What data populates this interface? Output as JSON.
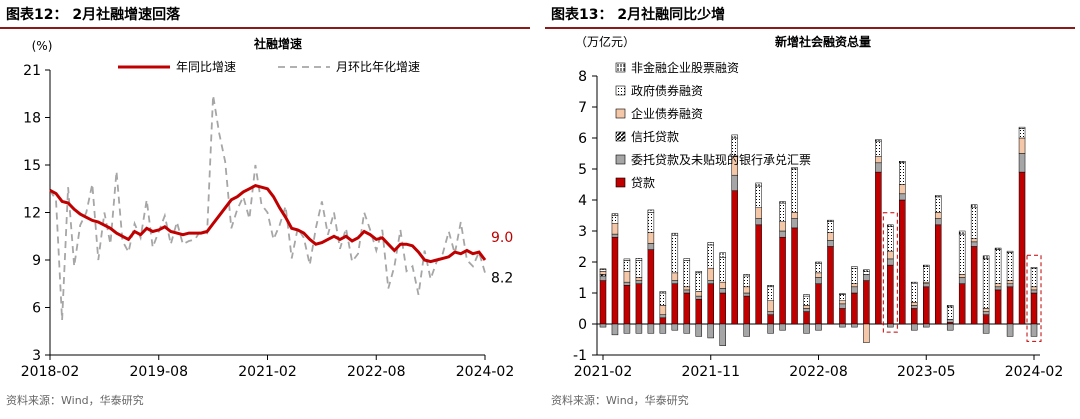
{
  "left": {
    "figure_title": "图表12： 2月社融增速回落",
    "source": "资料来源：Wind，华泰研究",
    "chart_data": {
      "type": "line",
      "title": "社融增速",
      "ylabel": "(%)",
      "ylim": [
        3,
        21
      ],
      "yticks": [
        3,
        6,
        9,
        12,
        15,
        18,
        21
      ],
      "xticks": [
        "2018-02",
        "2019-08",
        "2021-02",
        "2022-08",
        "2024-02"
      ],
      "n_points": 73,
      "series": [
        {
          "name": "年同比增速",
          "color": "#c00000",
          "values": [
            13.4,
            13.2,
            12.7,
            12.6,
            12.2,
            11.9,
            11.7,
            11.5,
            11.4,
            11.2,
            11.0,
            10.7,
            10.5,
            10.3,
            10.8,
            10.6,
            11.0,
            10.8,
            10.9,
            11.1,
            10.8,
            10.7,
            10.6,
            10.7,
            10.7,
            10.7,
            10.8,
            11.3,
            11.8,
            12.3,
            12.8,
            13.0,
            13.3,
            13.5,
            13.7,
            13.6,
            13.5,
            13.0,
            12.3,
            11.7,
            11.0,
            10.9,
            10.7,
            10.3,
            10.0,
            10.1,
            10.3,
            10.5,
            10.3,
            10.5,
            10.2,
            10.4,
            10.8,
            10.6,
            10.3,
            10.4,
            10.0,
            9.6,
            10.0,
            10.0,
            9.9,
            9.5,
            9.0,
            8.9,
            9.0,
            9.1,
            9.2,
            9.5,
            9.4,
            9.6,
            9.4,
            9.5,
            9.0
          ],
          "end_label": "9.0"
        },
        {
          "name": "月环比年化增速",
          "color": "#a6a6a6",
          "values": [
            13.4,
            12.8,
            5.2,
            13.6,
            8.6,
            11.2,
            12.0,
            13.8,
            9.0,
            12.0,
            10.0,
            14.6,
            10.2,
            9.5,
            11.3,
            10.4,
            12.8,
            9.8,
            10.8,
            11.8,
            10.0,
            11.4,
            10.0,
            10.2,
            10.3,
            10.9,
            10.7,
            19.4,
            17.0,
            15.2,
            11.0,
            12.2,
            13.0,
            11.6,
            15.0,
            12.5,
            12.0,
            10.3,
            11.2,
            12.4,
            9.1,
            11.0,
            10.4,
            8.7,
            11.0,
            12.7,
            10.6,
            12.0,
            9.7,
            11.0,
            8.9,
            9.4,
            12.0,
            10.9,
            9.6,
            10.9,
            7.2,
            8.6,
            10.9,
            8.3,
            8.6,
            6.8,
            9.6,
            7.8,
            8.9,
            9.4,
            10.8,
            9.4,
            11.4,
            9.0,
            8.6,
            9.5,
            8.2
          ],
          "end_label": "8.2"
        }
      ]
    }
  },
  "right": {
    "figure_title": "图表13： 2月社融同比少增",
    "source": "资料来源：Wind，华泰研究",
    "chart_data": {
      "type": "bar",
      "title": "新增社会融资总量",
      "ylabel": "（万亿元）",
      "ylim": [
        -1,
        8
      ],
      "yticks": [
        -1,
        0,
        1,
        2,
        3,
        4,
        5,
        6,
        7,
        8
      ],
      "xticks": [
        "2021-02",
        "2021-11",
        "2022-08",
        "2023-05",
        "2024-02"
      ],
      "stacked": true,
      "highlighted_periods": [
        "2023-02",
        "2024-02"
      ],
      "series": [
        {
          "name": "非金融企业股票融资",
          "color": "#ffffff",
          "pattern": "vertical-dash"
        },
        {
          "name": "政府债券融资",
          "color": "#ffffff",
          "pattern": "dots"
        },
        {
          "name": "企业债券融资",
          "color": "#f4c7a8"
        },
        {
          "name": "信托贷款",
          "color": "#000000",
          "pattern": "diagonal"
        },
        {
          "name": "委托贷款及未贴现的银行承兑汇票",
          "color": "#a6a6a6"
        },
        {
          "name": "贷款",
          "color": "#c00000"
        }
      ],
      "periods": [
        {
          "label": "2021-02",
          "loans": 1.4,
          "entrusted": 0.15,
          "trust": 0.05,
          "corp_bonds": 0.1,
          "gov_bonds": 0.05,
          "equity": 0.03,
          "neg": -0.1
        },
        {
          "label": "2021-03",
          "loans": 2.8,
          "entrusted": 0.1,
          "trust": 0.0,
          "corp_bonds": 0.35,
          "gov_bonds": 0.25,
          "equity": 0.06,
          "neg": -0.35
        },
        {
          "label": "2021-04",
          "loans": 1.25,
          "entrusted": 0.1,
          "trust": 0.0,
          "corp_bonds": 0.35,
          "gov_bonds": 0.35,
          "equity": 0.05,
          "neg": -0.3
        },
        {
          "label": "2021-05",
          "loans": 1.3,
          "entrusted": 0.1,
          "trust": 0.0,
          "corp_bonds": 0.1,
          "gov_bonds": 0.55,
          "equity": 0.07,
          "neg": -0.3
        },
        {
          "label": "2021-06",
          "loans": 2.4,
          "entrusted": 0.2,
          "trust": 0.0,
          "corp_bonds": 0.35,
          "gov_bonds": 0.65,
          "equity": 0.08,
          "neg": -0.3
        },
        {
          "label": "2021-07",
          "loans": 0.2,
          "entrusted": 0.1,
          "trust": 0.0,
          "corp_bonds": 0.3,
          "gov_bonds": 0.4,
          "equity": 0.05,
          "neg": -0.3
        },
        {
          "label": "2021-08",
          "loans": 1.3,
          "entrusted": 0.1,
          "trust": 0.0,
          "corp_bonds": 0.25,
          "gov_bonds": 1.2,
          "equity": 0.08,
          "neg": -0.2
        },
        {
          "label": "2021-09",
          "loans": 1.0,
          "entrusted": 0.1,
          "trust": 0.0,
          "corp_bonds": 0.1,
          "gov_bonds": 0.85,
          "equity": 0.06,
          "neg": -0.3
        },
        {
          "label": "2021-10",
          "loans": 0.8,
          "entrusted": 0.1,
          "trust": 0.0,
          "corp_bonds": 0.15,
          "gov_bonds": 0.6,
          "equity": 0.05,
          "neg": -0.4
        },
        {
          "label": "2021-11",
          "loans": 1.3,
          "entrusted": 0.1,
          "trust": 0.0,
          "corp_bonds": 0.4,
          "gov_bonds": 0.75,
          "equity": 0.08,
          "neg": -0.45
        },
        {
          "label": "2021-12",
          "loans": 1.0,
          "entrusted": 0.15,
          "trust": 0.0,
          "corp_bonds": 0.2,
          "gov_bonds": 0.8,
          "equity": 0.15,
          "neg": -0.7
        },
        {
          "label": "2022-01",
          "loans": 4.3,
          "entrusted": 0.5,
          "trust": 0.0,
          "corp_bonds": 0.6,
          "gov_bonds": 0.6,
          "equity": 0.1,
          "neg": 0
        },
        {
          "label": "2022-02",
          "loans": 0.9,
          "entrusted": 0.1,
          "trust": 0.0,
          "corp_bonds": 0.2,
          "gov_bonds": 0.35,
          "equity": 0.05,
          "neg": -0.4
        },
        {
          "label": "2022-03",
          "loans": 3.2,
          "entrusted": 0.2,
          "trust": 0.0,
          "corp_bonds": 0.35,
          "gov_bonds": 0.7,
          "equity": 0.1,
          "neg": 0
        },
        {
          "label": "2022-04",
          "loans": 0.3,
          "entrusted": 0.1,
          "trust": 0.0,
          "corp_bonds": 0.35,
          "gov_bonds": 0.45,
          "equity": 0.05,
          "neg": -0.3
        },
        {
          "label": "2022-05",
          "loans": 2.8,
          "entrusted": 0.2,
          "trust": 0.0,
          "corp_bonds": 0.3,
          "gov_bonds": 0.6,
          "equity": 0.05,
          "neg": -0.2
        },
        {
          "label": "2022-06",
          "loans": 3.1,
          "entrusted": 0.3,
          "trust": 0.0,
          "corp_bonds": 0.2,
          "gov_bonds": 1.4,
          "equity": 0.05,
          "neg": 0
        },
        {
          "label": "2022-07",
          "loans": 0.4,
          "entrusted": 0.1,
          "trust": 0.0,
          "corp_bonds": 0.1,
          "gov_bonds": 0.3,
          "equity": 0.05,
          "neg": -0.3
        },
        {
          "label": "2022-08",
          "loans": 1.3,
          "entrusted": 0.2,
          "trust": 0.0,
          "corp_bonds": 0.15,
          "gov_bonds": 0.3,
          "equity": 0.05,
          "neg": -0.2
        },
        {
          "label": "2022-09",
          "loans": 2.5,
          "entrusted": 0.2,
          "trust": 0.0,
          "corp_bonds": 0.25,
          "gov_bonds": 0.35,
          "equity": 0.05,
          "neg": 0
        },
        {
          "label": "2022-10",
          "loans": 0.5,
          "entrusted": 0.15,
          "trust": 0.0,
          "corp_bonds": 0.1,
          "gov_bonds": 0.2,
          "equity": 0.03,
          "neg": -0.1
        },
        {
          "label": "2022-11",
          "loans": 1.0,
          "entrusted": 0.2,
          "trust": 0.0,
          "corp_bonds": 0.1,
          "gov_bonds": 0.5,
          "equity": 0.05,
          "neg": -0.1
        },
        {
          "label": "2022-12",
          "loans": 1.4,
          "entrusted": 0.2,
          "trust": 0.0,
          "corp_bonds": 0.0,
          "gov_bonds": 0.1,
          "equity": 0.05,
          "neg": -0.6
        },
        {
          "label": "2023-01",
          "loans": 4.9,
          "entrusted": 0.3,
          "trust": 0.0,
          "corp_bonds": 0.2,
          "gov_bonds": 0.5,
          "equity": 0.05,
          "neg": 0
        },
        {
          "label": "2023-02",
          "loans": 1.9,
          "entrusted": 0.2,
          "trust": 0.0,
          "corp_bonds": 0.25,
          "gov_bonds": 0.8,
          "equity": 0.05,
          "neg": -0.1
        },
        {
          "label": "2023-03",
          "loans": 4.0,
          "entrusted": 0.2,
          "trust": 0.0,
          "corp_bonds": 0.3,
          "gov_bonds": 0.7,
          "equity": 0.05,
          "neg": 0
        },
        {
          "label": "2023-04",
          "loans": 0.5,
          "entrusted": 0.1,
          "trust": 0.0,
          "corp_bonds": 0.1,
          "gov_bonds": 0.6,
          "equity": 0.05,
          "neg": -0.2
        },
        {
          "label": "2023-05",
          "loans": 1.2,
          "entrusted": 0.1,
          "trust": 0.0,
          "corp_bonds": 0.05,
          "gov_bonds": 0.5,
          "equity": 0.05,
          "neg": -0.1
        },
        {
          "label": "2023-06",
          "loans": 3.2,
          "entrusted": 0.2,
          "trust": 0.0,
          "corp_bonds": 0.2,
          "gov_bonds": 0.5,
          "equity": 0.05,
          "neg": 0
        },
        {
          "label": "2023-07",
          "loans": 0.05,
          "entrusted": 0.1,
          "trust": 0.0,
          "corp_bonds": 0.0,
          "gov_bonds": 0.4,
          "equity": 0.05,
          "neg": -0.2
        },
        {
          "label": "2023-08",
          "loans": 1.3,
          "entrusted": 0.2,
          "trust": 0.0,
          "corp_bonds": 0.1,
          "gov_bonds": 1.3,
          "equity": 0.1,
          "neg": 0
        },
        {
          "label": "2023-09",
          "loans": 2.5,
          "entrusted": 0.15,
          "trust": 0.0,
          "corp_bonds": 0.1,
          "gov_bonds": 1.0,
          "equity": 0.1,
          "neg": 0
        },
        {
          "label": "2023-10",
          "loans": 0.3,
          "entrusted": 0.1,
          "trust": 0.0,
          "corp_bonds": 0.1,
          "gov_bonds": 1.6,
          "equity": 0.1,
          "neg": -0.3
        },
        {
          "label": "2023-11",
          "loans": 1.1,
          "entrusted": 0.1,
          "trust": 0.0,
          "corp_bonds": 0.1,
          "gov_bonds": 1.1,
          "equity": 0.05,
          "neg": 0
        },
        {
          "label": "2023-12",
          "loans": 1.2,
          "entrusted": 0.1,
          "trust": 0.0,
          "corp_bonds": 0.1,
          "gov_bonds": 0.9,
          "equity": 0.05,
          "neg": -0.4
        },
        {
          "label": "2024-01",
          "loans": 4.9,
          "entrusted": 0.6,
          "trust": 0.0,
          "corp_bonds": 0.5,
          "gov_bonds": 0.3,
          "equity": 0.05,
          "neg": 0
        },
        {
          "label": "2024-02",
          "loans": 1.0,
          "entrusted": 0.1,
          "trust": 0.0,
          "corp_bonds": 0.1,
          "gov_bonds": 0.6,
          "equity": 0.03,
          "neg": -0.4
        }
      ]
    }
  }
}
